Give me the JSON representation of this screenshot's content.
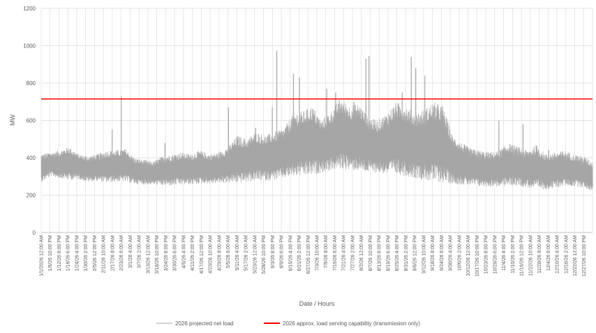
{
  "chart_data": {
    "type": "line",
    "title": "",
    "xlabel": "Date / Hours",
    "ylabel": "MW",
    "ylim": [
      0,
      1200
    ],
    "yticks": [
      0,
      200,
      400,
      600,
      800,
      1000,
      1200
    ],
    "grid": true,
    "legend_position": "bottom",
    "x_tick_labels": [
      "1/1/2026 12:00 AM",
      "1/6/26 10:00 PM",
      "1/12/26 8:00 PM",
      "1/18/26 6:00 PM",
      "1/24/26 4:00 PM",
      "1/30/26 2:00 PM",
      "2/5/26 12:00 PM",
      "2/11/26 10:00 AM",
      "2/17/26 8:00 AM",
      "2/23/26 6:00 AM",
      "3/1/26 4:00 AM",
      "3/7/26 2:00 AM",
      "3/13/26 12:00 AM",
      "3/18/26 10:00 PM",
      "3/24/26 8:00 PM",
      "3/30/26 6:00 PM",
      "4/5/26 4:00 PM",
      "4/11/26 2:00 PM",
      "4/17/26 12:00 PM",
      "4/23/26 10:00 AM",
      "4/29/26 8:00 AM",
      "5/5/26 6:00 AM",
      "5/11/26 4:00 AM",
      "5/17/26 2:00 AM",
      "5/23/26 12:00 AM",
      "5/28/26 10:00 PM",
      "6/3/26 8:00 PM",
      "6/9/26 6:00 PM",
      "6/15/26 4:00 PM",
      "6/21/26 2:00 PM",
      "6/27/26 12:00 PM",
      "7/3/26 10:00 AM",
      "7/9/26 8:00 AM",
      "7/15/26 6:00 AM",
      "7/21/26 4:00 AM",
      "7/27/26 2:00 AM",
      "8/2/26 12:00 AM",
      "8/7/26 10:00 PM",
      "8/13/26 8:00 PM",
      "8/19/26 6:00 PM",
      "8/25/26 4:00 PM",
      "8/31/26 2:00 PM",
      "9/6/26 12:00 PM",
      "9/12/26 10:00 AM",
      "9/18/26 8:00 AM",
      "9/24/26 6:00 AM",
      "9/30/26 4:00 AM",
      "10/6/26 2:00 AM",
      "10/12/26 12:00 AM",
      "10/17/26 10:00 PM",
      "10/23/26 8:00 PM",
      "10/29/26 6:00 PM",
      "11/4/26 4:00 PM",
      "11/10/26 2:00 PM",
      "11/16/26 12:00 PM",
      "11/22/26 10:00 AM",
      "11/28/26 8:00 AM",
      "12/4/26 6:00 AM",
      "12/10/26 4:00 AM",
      "12/16/26 2:00 AM",
      "12/22/26 12:00 AM",
      "12/27/26 10:00 PM"
    ],
    "series": [
      {
        "name": "2026 projected net load",
        "color": "#a6a6a6",
        "style": "hourly-band",
        "lows": [
          270,
          300,
          290,
          280,
          285,
          270,
          275,
          265,
          270,
          270,
          260,
          255,
          255,
          250,
          250,
          255,
          255,
          260,
          260,
          265,
          265,
          265,
          270,
          275,
          275,
          280,
          290,
          300,
          300,
          305,
          320,
          330,
          340,
          330,
          330,
          320,
          320,
          310,
          310,
          300,
          290,
          280,
          270,
          265,
          260,
          255,
          250,
          245,
          245,
          245,
          250,
          250,
          240,
          230,
          230,
          235,
          250,
          245,
          240,
          220
        ],
        "highs": [
          420,
          430,
          440,
          460,
          420,
          410,
          420,
          440,
          440,
          450,
          400,
          390,
          380,
          410,
          420,
          430,
          420,
          440,
          420,
          430,
          460,
          520,
          500,
          540,
          520,
          540,
          560,
          640,
          650,
          680,
          600,
          650,
          720,
          680,
          690,
          620,
          600,
          640,
          700,
          680,
          640,
          660,
          700,
          680,
          520,
          480,
          450,
          440,
          430,
          440,
          480,
          460,
          440,
          470,
          420,
          430,
          440,
          420,
          410,
          380
        ],
        "spikes": [
          {
            "date": "1/6/26",
            "value": 420
          },
          {
            "date": "2/17/26",
            "value": 550
          },
          {
            "date": "2/23/26",
            "value": 730
          },
          {
            "date": "3/24/26",
            "value": 480
          },
          {
            "date": "5/5/26",
            "value": 670
          },
          {
            "date": "5/23/26",
            "value": 560
          },
          {
            "date": "6/3/26",
            "value": 670
          },
          {
            "date": "6/6/26",
            "value": 975
          },
          {
            "date": "6/17/26",
            "value": 850
          },
          {
            "date": "6/21/26",
            "value": 830
          },
          {
            "date": "7/9/26",
            "value": 770
          },
          {
            "date": "7/15/26",
            "value": 750
          },
          {
            "date": "7/27/26",
            "value": 700
          },
          {
            "date": "8/4/26",
            "value": 930
          },
          {
            "date": "8/6/26",
            "value": 945
          },
          {
            "date": "8/28/26",
            "value": 750
          },
          {
            "date": "9/3/26",
            "value": 940
          },
          {
            "date": "9/6/26",
            "value": 880
          },
          {
            "date": "9/12/26",
            "value": 840
          },
          {
            "date": "10/31/26",
            "value": 600
          },
          {
            "date": "11/16/26",
            "value": 580
          },
          {
            "date": "12/3/26",
            "value": 440
          }
        ]
      },
      {
        "name": "2026 approx. load serving  capability (transmission only)",
        "color": "#ff0000",
        "values": [
          715,
          715
        ]
      }
    ]
  }
}
